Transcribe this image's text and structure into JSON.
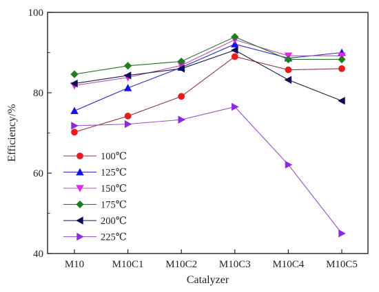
{
  "chart_data": {
    "type": "line",
    "title": "",
    "xlabel": "Catalyzer",
    "ylabel": "Efficiency/%",
    "categories": [
      "M10",
      "M10C1",
      "M10C2",
      "M10C3",
      "M10C4",
      "M10C5"
    ],
    "ylim": [
      40,
      100
    ],
    "yticks": [
      40,
      60,
      80,
      100
    ],
    "grid": false,
    "legend_position": "bottom-left",
    "series": [
      {
        "name": "100℃",
        "color": "#8b3a3a",
        "marker": "circle",
        "marker_color": "#e81c1c",
        "values": [
          70.2,
          74.2,
          79.1,
          89.0,
          85.7,
          86.0
        ]
      },
      {
        "name": "125℃",
        "color": "#2b2bb8",
        "marker": "triangle-up",
        "marker_color": "#1414e6",
        "values": [
          75.5,
          81.2,
          86.3,
          92.1,
          88.6,
          90.0
        ]
      },
      {
        "name": "150℃",
        "color": "#b050b0",
        "marker": "triangle-down",
        "marker_color": "#e626e6",
        "values": [
          81.8,
          83.8,
          86.8,
          93.2,
          89.2,
          89.2
        ]
      },
      {
        "name": "175℃",
        "color": "#2a6b2a",
        "marker": "diamond",
        "marker_color": "#1e7d1e",
        "values": [
          84.6,
          86.7,
          87.8,
          93.9,
          88.3,
          88.3
        ]
      },
      {
        "name": "200℃",
        "color": "#1a1a4a",
        "marker": "triangle-left",
        "marker_color": "#0d0d55",
        "values": [
          82.3,
          84.3,
          86.0,
          90.6,
          83.2,
          78.0
        ]
      },
      {
        "name": "225℃",
        "color": "#9a4fc9",
        "marker": "triangle-right",
        "marker_color": "#8a2be2",
        "values": [
          71.8,
          72.2,
          73.3,
          76.5,
          62.1,
          45.0
        ]
      }
    ]
  }
}
